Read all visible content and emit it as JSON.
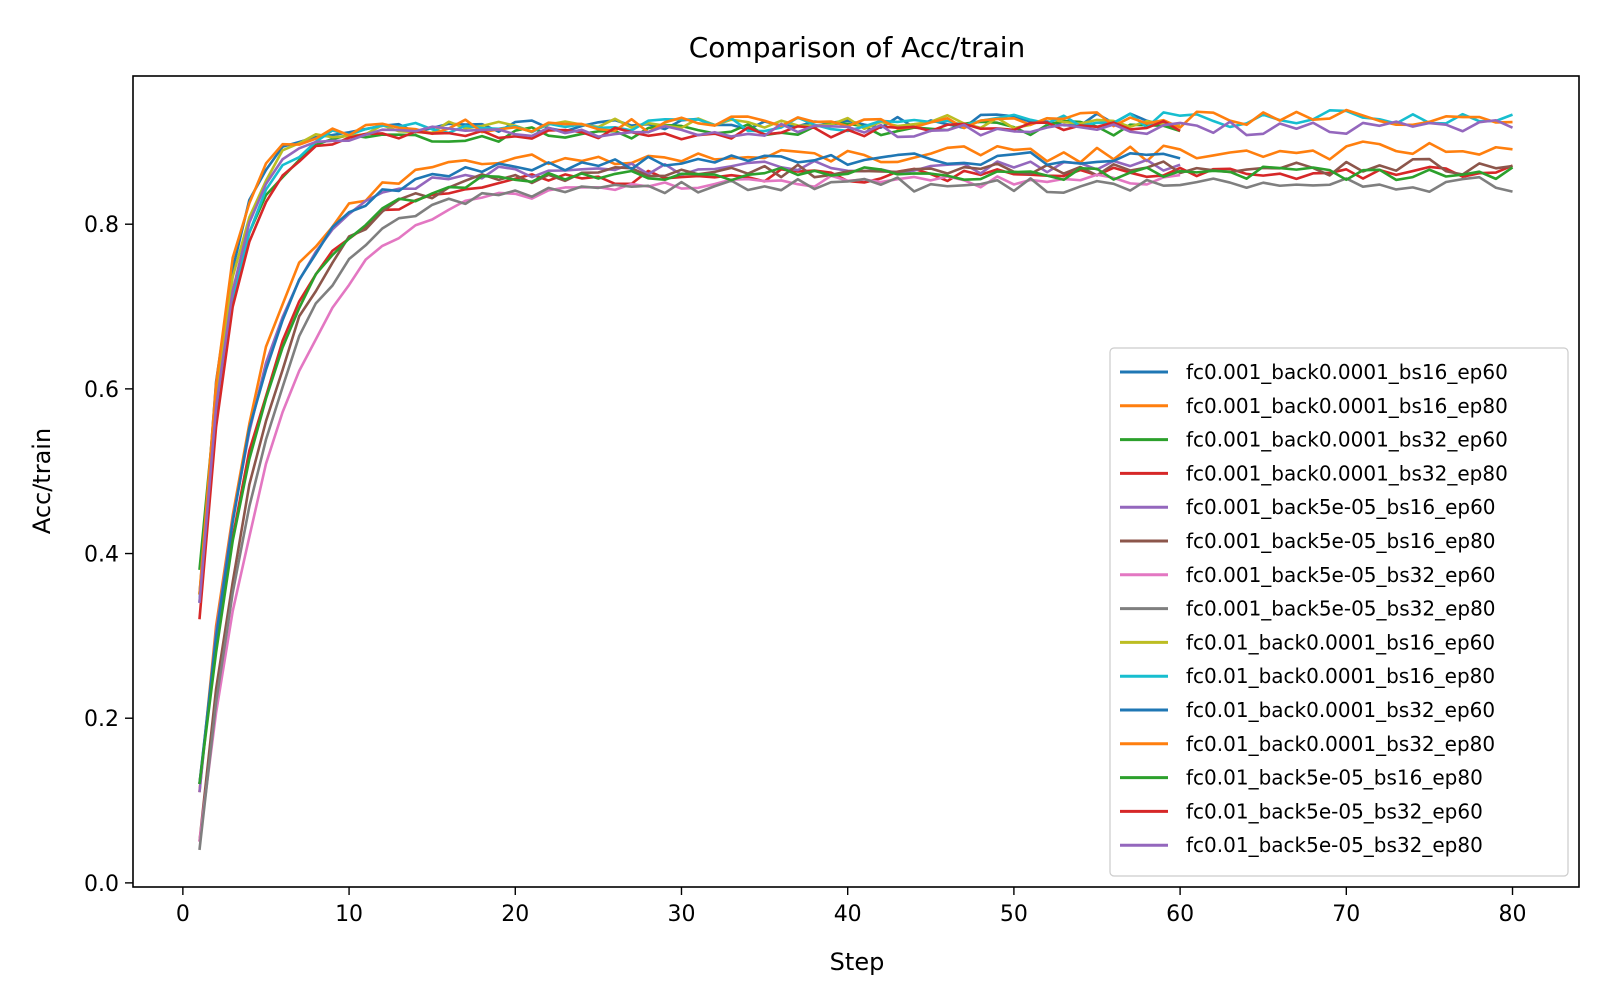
{
  "chart_data": {
    "type": "line",
    "title": "Comparison of Acc/train",
    "xlabel": "Step",
    "ylabel": "Acc/train",
    "xlim": [
      -3,
      84
    ],
    "ylim": [
      -0.005,
      0.98
    ],
    "xticks": [
      0,
      10,
      20,
      30,
      40,
      50,
      60,
      70,
      80
    ],
    "yticks": [
      0.0,
      0.2,
      0.4,
      0.6,
      0.8
    ],
    "ytick_labels": [
      "0.0",
      "0.2",
      "0.4",
      "0.6",
      "0.8"
    ],
    "grid": false,
    "legend_position": "center-right",
    "series": [
      {
        "name": "fc0.001_back0.0001_bs16_ep60",
        "color": "#1f77b4",
        "steps": 60,
        "start": 0.34,
        "k": 0.62,
        "plateau": 0.915,
        "slope": 0.0002,
        "noise": 0.006
      },
      {
        "name": "fc0.001_back0.0001_bs16_ep80",
        "color": "#ff7f0e",
        "steps": 80,
        "start": 0.11,
        "k": 0.3,
        "plateau": 0.872,
        "slope": 0.00025,
        "noise": 0.008
      },
      {
        "name": "fc0.001_back0.0001_bs32_ep60",
        "color": "#2ca02c",
        "steps": 60,
        "start": 0.38,
        "k": 0.5,
        "plateau": 0.905,
        "slope": 0.0002,
        "noise": 0.007
      },
      {
        "name": "fc0.001_back0.0001_bs32_ep80",
        "color": "#d62728",
        "steps": 80,
        "start": 0.12,
        "k": 0.26,
        "plateau": 0.855,
        "slope": 0.0001,
        "noise": 0.006
      },
      {
        "name": "fc0.001_back5e-05_bs16_ep60",
        "color": "#9467bd",
        "steps": 60,
        "start": 0.11,
        "k": 0.29,
        "plateau": 0.865,
        "slope": 0.0001,
        "noise": 0.006
      },
      {
        "name": "fc0.001_back5e-05_bs16_ep80",
        "color": "#8c564b",
        "steps": 80,
        "start": 0.05,
        "k": 0.25,
        "plateau": 0.862,
        "slope": 0.0001,
        "noise": 0.007
      },
      {
        "name": "fc0.001_back5e-05_bs32_ep60",
        "color": "#e377c2",
        "steps": 60,
        "start": 0.05,
        "k": 0.21,
        "plateau": 0.848,
        "slope": 0.0001,
        "noise": 0.006
      },
      {
        "name": "fc0.001_back5e-05_bs32_ep80",
        "color": "#7f7f7f",
        "steps": 80,
        "start": 0.04,
        "k": 0.24,
        "plateau": 0.848,
        "slope": 0.0,
        "noise": 0.007
      },
      {
        "name": "fc0.01_back0.0001_bs16_ep60",
        "color": "#bcbd22",
        "steps": 60,
        "start": 0.35,
        "k": 0.57,
        "plateau": 0.915,
        "slope": 0.0002,
        "noise": 0.006
      },
      {
        "name": "fc0.01_back0.0001_bs16_ep80",
        "color": "#17becf",
        "steps": 80,
        "start": 0.35,
        "k": 0.5,
        "plateau": 0.915,
        "slope": 0.0002,
        "noise": 0.007
      },
      {
        "name": "fc0.01_back0.0001_bs32_ep60",
        "color": "#1f77b4",
        "steps": 60,
        "start": 0.12,
        "k": 0.28,
        "plateau": 0.87,
        "slope": 0.0002,
        "noise": 0.006
      },
      {
        "name": "fc0.01_back0.0001_bs32_ep80",
        "color": "#ff7f0e",
        "steps": 80,
        "start": 0.35,
        "k": 0.62,
        "plateau": 0.915,
        "slope": 0.0002,
        "noise": 0.007
      },
      {
        "name": "fc0.01_back5e-05_bs16_ep80",
        "color": "#2ca02c",
        "steps": 80,
        "start": 0.12,
        "k": 0.25,
        "plateau": 0.862,
        "slope": 0.0,
        "noise": 0.006
      },
      {
        "name": "fc0.01_back5e-05_bs32_ep60",
        "color": "#d62728",
        "steps": 60,
        "start": 0.32,
        "k": 0.52,
        "plateau": 0.905,
        "slope": 0.0002,
        "noise": 0.006
      },
      {
        "name": "fc0.01_back5e-05_bs32_ep80",
        "color": "#9467bd",
        "steps": 80,
        "start": 0.34,
        "k": 0.55,
        "plateau": 0.91,
        "slope": 0.0001,
        "noise": 0.006
      }
    ]
  }
}
